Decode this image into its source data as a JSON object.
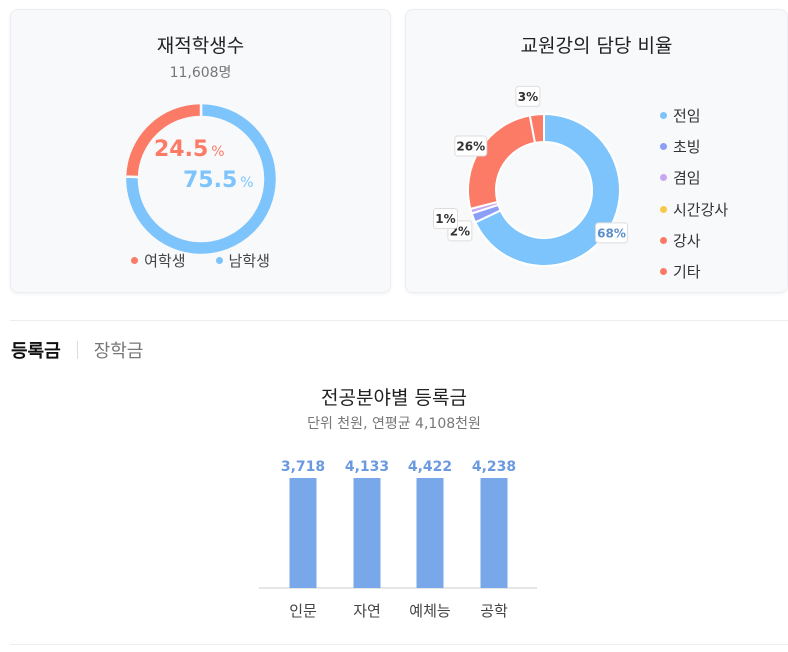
{
  "enrollment": {
    "title": "재적학생수",
    "subtitle": "11,608명"
  },
  "faculty": {
    "title": "교원강의 담당 비율"
  },
  "tabs": {
    "active": "등록금",
    "inactive": "장학금"
  },
  "tuition": {
    "title": "전공분야별 등록금",
    "subtitle": "단위 천원, 연평균 4,108천원"
  },
  "chart_data": [
    {
      "type": "pie",
      "title": "재적학생수",
      "categories": [
        "여학생",
        "남학생"
      ],
      "values": [
        24.5,
        75.5
      ],
      "colors": [
        "#fb7b66",
        "#7cc4fb"
      ],
      "unit": "%",
      "legend": "bottom"
    },
    {
      "type": "pie",
      "title": "교원강의 담당 비율",
      "categories": [
        "전임",
        "초빙",
        "겸임",
        "시간강사",
        "강사",
        "기타"
      ],
      "values": [
        68,
        2,
        1,
        0,
        26,
        3
      ],
      "colors": [
        "#7cc4fb",
        "#8a9ff5",
        "#c7a6f3",
        "#f7c948",
        "#fb7b66",
        "#fb7b66"
      ],
      "data_labels": [
        "68%",
        "2%",
        "1%",
        "",
        "26%",
        "3%"
      ],
      "legend": "right"
    },
    {
      "type": "bar",
      "title": "전공분야별 등록금",
      "categories": [
        "인문",
        "자연",
        "예체능",
        "공학"
      ],
      "values": [
        3718,
        4133,
        4422,
        4238
      ],
      "data_labels": [
        "3,718",
        "4,133",
        "4,422",
        "4,238"
      ],
      "color": "#78a7ea",
      "ylim": [
        0,
        4500
      ]
    }
  ]
}
